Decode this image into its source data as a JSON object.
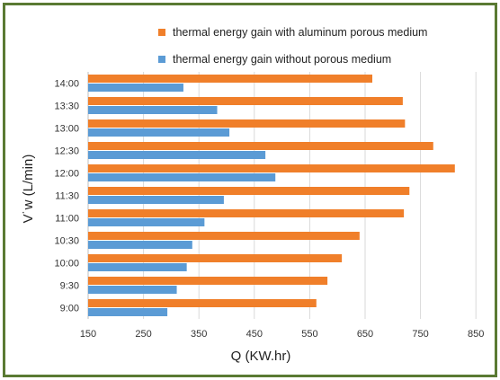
{
  "chart_data": {
    "type": "bar",
    "orientation": "horizontal",
    "title": "",
    "xlabel": "Q (KW.hr)",
    "ylabel": "V˙w (L/min)",
    "xlim": [
      150,
      900
    ],
    "xticks": [
      150,
      250,
      350,
      450,
      550,
      650,
      750,
      850
    ],
    "categories": [
      "9:00",
      "9:30",
      "10:00",
      "10:30",
      "11:00",
      "11:30",
      "12:00",
      "12:30",
      "13:00",
      "13:30",
      "14:00"
    ],
    "series": [
      {
        "name": "thermal energy gain with aluminum  porous medium",
        "color": "#f07f2a",
        "values": [
          562,
          582,
          608,
          640,
          720,
          730,
          812,
          773,
          722,
          718,
          663
        ]
      },
      {
        "name": "thermal energy gain without porous medium",
        "color": "#5b9bd5",
        "values": [
          293,
          310,
          328,
          338,
          360,
          395,
          488,
          470,
          405,
          383,
          322
        ]
      }
    ],
    "legend_position": "top-right",
    "grid": "vertical"
  }
}
